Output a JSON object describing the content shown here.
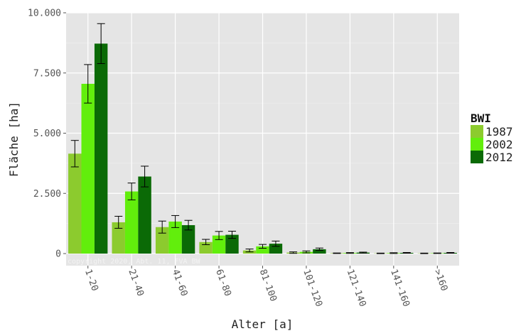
{
  "chart_data": {
    "type": "bar",
    "xlabel": "Alter [a]",
    "ylabel": "Fläche [ha]",
    "ylim": [
      0,
      10000
    ],
    "yticks": [
      0,
      2500,
      5000,
      7500,
      10000
    ],
    "ytick_labels": [
      "0",
      "2.500",
      "5.000",
      "7.500",
      "10.000"
    ],
    "categories": [
      "1-20",
      "21-40",
      "41-60",
      "61-80",
      "81-100",
      "101-120",
      "121-140",
      "141-160",
      ">160"
    ],
    "legend": {
      "title": "BWI",
      "position": "right"
    },
    "grid": true,
    "series": [
      {
        "name": "1987",
        "color": "#8ccb2e",
        "values": [
          4150,
          1300,
          1100,
          480,
          130,
          40,
          15,
          10,
          10
        ],
        "errors": [
          550,
          250,
          250,
          110,
          60,
          30,
          10,
          10,
          10
        ]
      },
      {
        "name": "2002",
        "color": "#62ee0c",
        "values": [
          7050,
          2580,
          1330,
          750,
          300,
          70,
          25,
          20,
          15
        ],
        "errors": [
          800,
          350,
          250,
          170,
          80,
          40,
          15,
          15,
          10
        ]
      },
      {
        "name": "2012",
        "color": "#0b6a06",
        "values": [
          8720,
          3200,
          1180,
          780,
          410,
          180,
          40,
          30,
          30
        ],
        "errors": [
          830,
          430,
          200,
          150,
          110,
          50,
          20,
          15,
          15
        ]
      }
    ],
    "watermark": "copyright 2020, Abt. 11, FVA BW"
  }
}
